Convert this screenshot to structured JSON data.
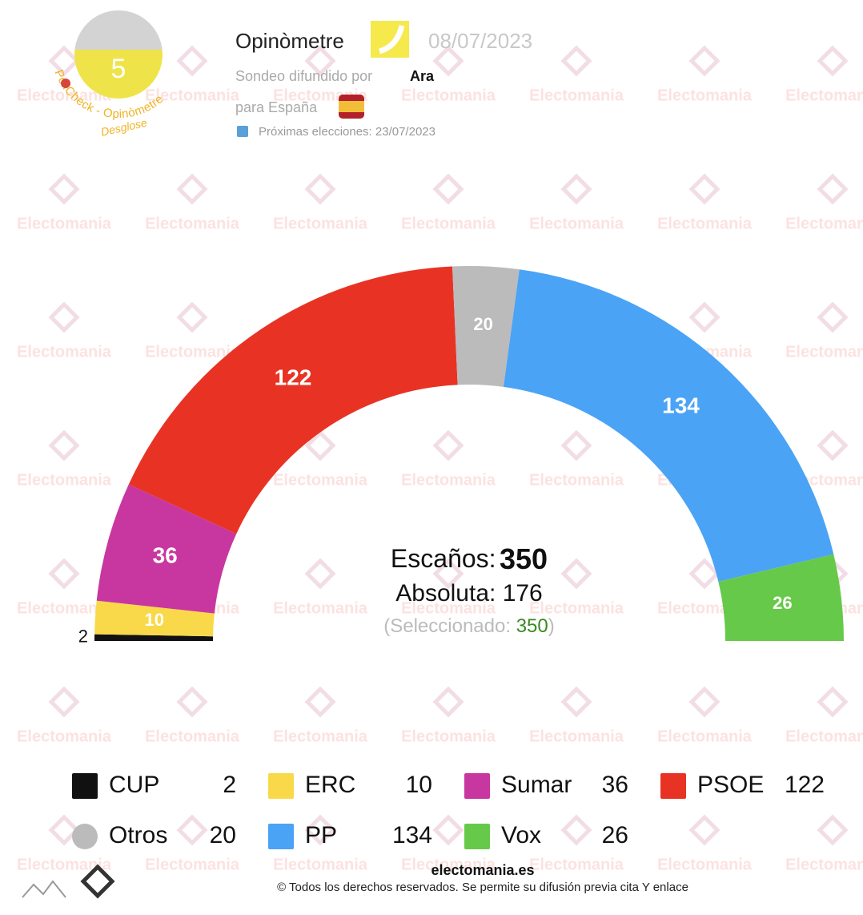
{
  "header": {
    "score": "5",
    "ring_text": "PollCheck - Opinòmetre",
    "breakdown": "Desglose",
    "pollster": "Opinòmetre",
    "date": "08/07/2023",
    "published_by": "Sondeo difundido por",
    "media": "Ara",
    "scope": "para España",
    "next_election": "Próximas elecciones: 23/07/2023"
  },
  "watermark": "Electomania",
  "chart_data": {
    "type": "hemicycle",
    "categories": [
      "CUP",
      "ERC",
      "Sumar",
      "PSOE",
      "Otros",
      "PP",
      "Vox"
    ],
    "values": [
      2,
      10,
      36,
      122,
      20,
      134,
      26
    ],
    "colors": [
      "#111111",
      "#f9d94a",
      "#c837a0",
      "#e83324",
      "#bbbbbb",
      "#4aa3f5",
      "#67c94a"
    ],
    "center": {
      "seats_label": "Escaños:",
      "seats": 350,
      "majority_label": "Absoluta:",
      "majority": 176,
      "selected_label": "(Seleccionado:",
      "selected": 350,
      "selected_close": ")"
    }
  },
  "footer": {
    "site": "electomania.es",
    "copyright": "© Todos los derechos reservados. Se permite su difusión previa cita Y enlace"
  }
}
